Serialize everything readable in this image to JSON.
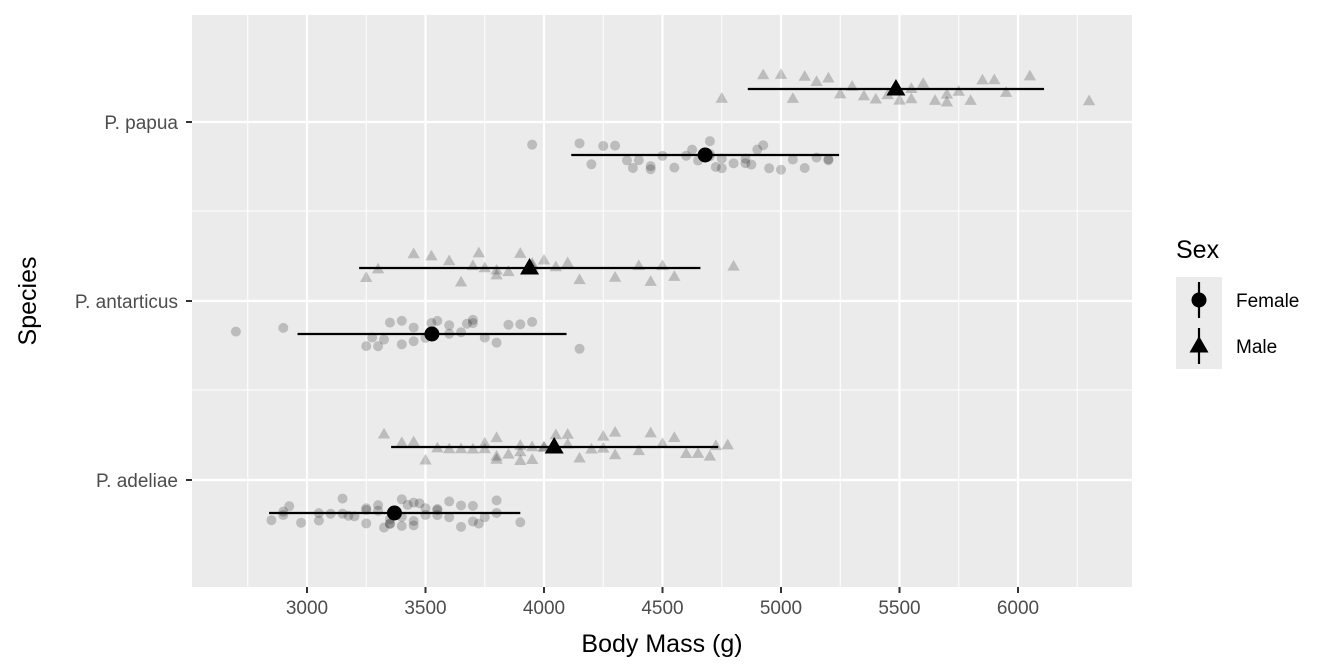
{
  "chart_data": {
    "type": "scatter",
    "title": "",
    "xlabel": "Body Mass (g)",
    "ylabel": "Species",
    "xlim": [
      2600,
      6600
    ],
    "x_ticks": [
      3000,
      3500,
      4000,
      4500,
      5000,
      5500,
      6000
    ],
    "categories": [
      "P. adeliae",
      "P. antarticus",
      "P. papua"
    ],
    "grid": true,
    "legend": {
      "title": "Sex",
      "position": "right"
    },
    "series": [
      {
        "name": "Female",
        "shape": "circle",
        "summary": [
          {
            "category": "P. adeliae",
            "mean": 3369,
            "low": 2840,
            "high": 3900
          },
          {
            "category": "P. antarticus",
            "mean": 3527,
            "low": 2960,
            "high": 4095
          },
          {
            "category": "P. papua",
            "mean": 4680,
            "low": 4115,
            "high": 5245
          }
        ]
      },
      {
        "name": "Male",
        "shape": "triangle",
        "summary": [
          {
            "category": "P. adeliae",
            "mean": 4043,
            "low": 3355,
            "high": 4735
          },
          {
            "category": "P. antarticus",
            "mean": 3939,
            "low": 3220,
            "high": 4660
          },
          {
            "category": "P. papua",
            "mean": 5485,
            "low": 4860,
            "high": 6110
          }
        ]
      }
    ],
    "raw_points": [
      {
        "category": "P. adeliae",
        "sex": "Female",
        "x": [
          2850,
          2900,
          2900,
          2925,
          2975,
          3050,
          3050,
          3100,
          3150,
          3150,
          3175,
          3200,
          3250,
          3250,
          3250,
          3300,
          3300,
          3325,
          3350,
          3350,
          3350,
          3400,
          3400,
          3400,
          3425,
          3450,
          3450,
          3450,
          3475,
          3500,
          3500,
          3550,
          3550,
          3550,
          3600,
          3600,
          3650,
          3650,
          3700,
          3700,
          3725,
          3750,
          3800,
          3800,
          3900
        ]
      },
      {
        "category": "P. adeliae",
        "sex": "Male",
        "x": [
          3325,
          3400,
          3450,
          3500,
          3550,
          3600,
          3650,
          3700,
          3750,
          3750,
          3800,
          3800,
          3800,
          3850,
          3900,
          3900,
          3900,
          3950,
          3950,
          4000,
          4000,
          4050,
          4100,
          4100,
          4150,
          4200,
          4250,
          4250,
          4300,
          4300,
          4400,
          4450,
          4500,
          4550,
          4600,
          4650,
          4700,
          4725,
          4775
        ]
      },
      {
        "category": "P. antarticus",
        "sex": "Female",
        "x": [
          2700,
          2900,
          3250,
          3275,
          3300,
          3325,
          3350,
          3400,
          3400,
          3450,
          3450,
          3500,
          3525,
          3550,
          3600,
          3600,
          3650,
          3675,
          3700,
          3700,
          3750,
          3800,
          3850,
          3900,
          3950,
          4150
        ]
      },
      {
        "category": "P. antarticus",
        "sex": "Male",
        "x": [
          3250,
          3300,
          3450,
          3525,
          3600,
          3650,
          3700,
          3725,
          3750,
          3800,
          3800,
          3850,
          3900,
          3950,
          3950,
          4000,
          4050,
          4100,
          4150,
          4300,
          4400,
          4450,
          4500,
          4550,
          4800
        ]
      },
      {
        "category": "P. papua",
        "sex": "Female",
        "x": [
          3950,
          4150,
          4200,
          4250,
          4300,
          4350,
          4375,
          4400,
          4450,
          4450,
          4500,
          4550,
          4600,
          4625,
          4650,
          4700,
          4700,
          4700,
          4725,
          4750,
          4750,
          4800,
          4850,
          4850,
          4875,
          4900,
          4925,
          4950,
          5000,
          5050,
          5100,
          5150,
          5200,
          5200
        ]
      },
      {
        "category": "P. papua",
        "sex": "Male",
        "x": [
          4750,
          4925,
          5000,
          5050,
          5100,
          5150,
          5200,
          5250,
          5300,
          5350,
          5400,
          5450,
          5500,
          5550,
          5550,
          5600,
          5650,
          5700,
          5700,
          5750,
          5800,
          5850,
          5900,
          5950,
          6050,
          6300
        ]
      }
    ]
  }
}
